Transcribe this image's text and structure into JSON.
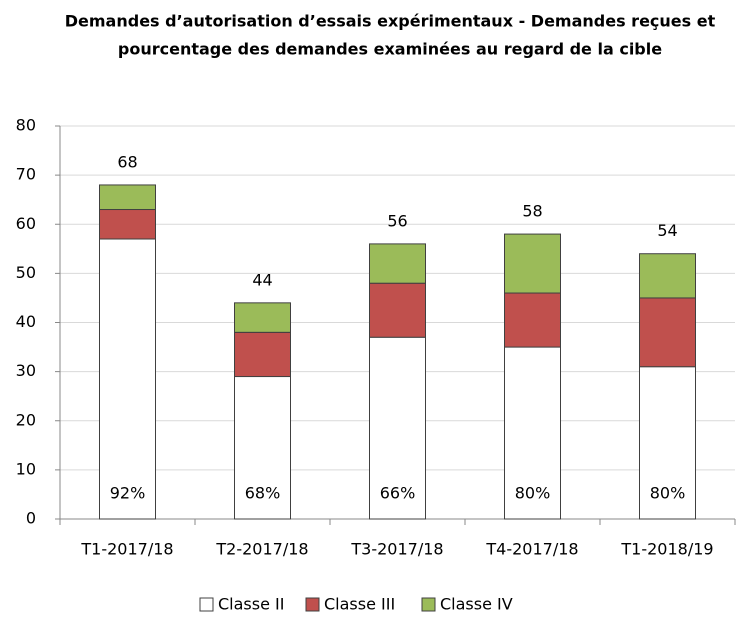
{
  "chart_data": {
    "type": "stacked_bar",
    "title_lines": [
      "Demandes d’autorisation d’essais expérimentaux - Demandes reçues et",
      "pourcentage des demandes examinées au regard de la cible"
    ],
    "categories": [
      "T1-2017/18",
      "T2-2017/18",
      "T3-2017/18",
      "T4-2017/18",
      "T1-2018/19"
    ],
    "series": [
      {
        "name": "Classe II",
        "color": "#ffffff",
        "values": [
          57,
          29,
          37,
          35,
          31
        ]
      },
      {
        "name": "Classe III",
        "color": "#c0504d",
        "values": [
          6,
          9,
          11,
          11,
          14
        ]
      },
      {
        "name": "Classe IV",
        "color": "#9bbb59",
        "values": [
          5,
          6,
          8,
          12,
          9
        ]
      }
    ],
    "totals": [
      68,
      44,
      56,
      58,
      54
    ],
    "bar_annotations": [
      "92%",
      "68%",
      "66%",
      "80%",
      "80%"
    ],
    "ylim": [
      0,
      80
    ],
    "yticks": [
      0,
      10,
      20,
      30,
      40,
      50,
      60,
      70,
      80
    ],
    "grid": true,
    "legend": "bottom"
  }
}
